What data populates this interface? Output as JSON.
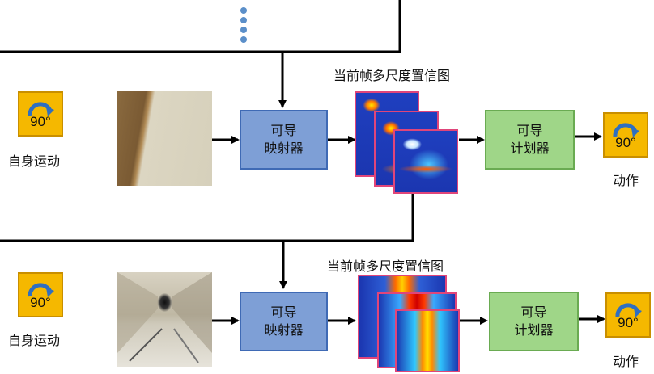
{
  "top_row": {
    "motion_label": "自身运动",
    "motion_icon": {
      "name": "rotate-right-icon",
      "angle": "90°"
    },
    "mapper_label": "可导\n映射器",
    "confidence_label": "当前帧多尺度置信图",
    "planner_label": "可导\n计划器",
    "action_label": "动作",
    "action_icon": {
      "name": "rotate-right-icon",
      "angle": "90°"
    }
  },
  "bottom_row": {
    "motion_label": "自身运动",
    "motion_icon": {
      "name": "rotate-right-icon",
      "angle": "90°"
    },
    "mapper_label": "可导\n映射器",
    "confidence_label": "当前帧多尺度置信图",
    "planner_label": "可导\n计划器",
    "action_label": "动作",
    "action_icon": {
      "name": "rotate-right-icon",
      "angle": "90°"
    }
  },
  "colors": {
    "mapper_fill": "#7e9fd6",
    "planner_fill": "#9fd688",
    "icon_fill": "#f5b800",
    "heatmap_border": "#e0457a"
  }
}
